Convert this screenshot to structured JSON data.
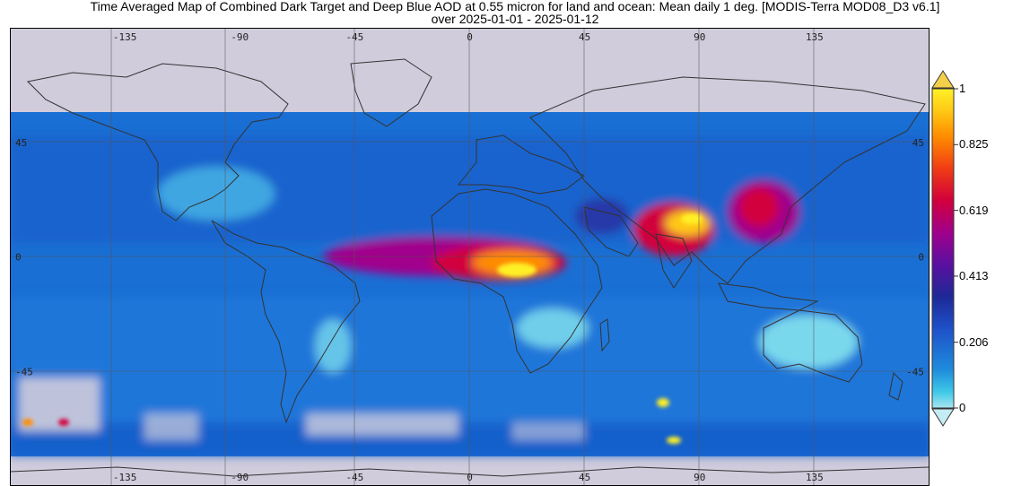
{
  "title": {
    "line1": "Time Averaged Map of Combined Dark Target and Deep Blue AOD at 0.55 micron for land and ocean: Mean daily 1 deg. [MODIS-Terra MOD08_D3 v6.1]",
    "line2": "over 2025-01-01 - 2025-01-12"
  },
  "map": {
    "lon_ticks": [
      "-135",
      "-90",
      "-45",
      "0",
      "45",
      "90",
      "135"
    ],
    "lon_values": [
      -135,
      -90,
      -45,
      0,
      45,
      90,
      135
    ],
    "lat_ticks": [
      "45",
      "0",
      "-45"
    ],
    "lat_values": [
      45,
      0,
      -45
    ],
    "no_data_color": "#d0ccdc",
    "coast_color": "#333333",
    "grid_color": "#555555"
  },
  "colorbar": {
    "labels": [
      "1",
      "0.825",
      "0.619",
      "0.413",
      "0.206",
      "0"
    ],
    "label_values": [
      1,
      0.825,
      0.619,
      0.413,
      0.206,
      0
    ],
    "range": [
      0,
      1
    ],
    "colors": [
      "#a8e6f0",
      "#3fc8e8",
      "#1e8cdc",
      "#1e50c8",
      "#1e2896",
      "#5a10a0",
      "#a0008c",
      "#d2003c",
      "#f03c14",
      "#ff8c00",
      "#ffc814",
      "#fff028"
    ],
    "over_color": "#f4d04a",
    "under_color": "#c4ecf4"
  }
}
